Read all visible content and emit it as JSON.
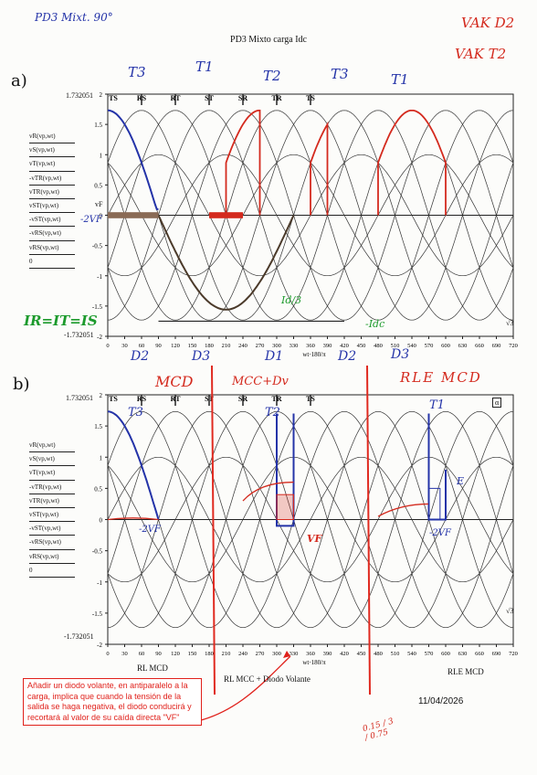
{
  "header": {
    "title": "PD3 Mixto carga Idc",
    "hw_topleft": "PD3 Mixt. 90°",
    "hw_topright_1": "VAK D2",
    "hw_topright_2": "VAK T2"
  },
  "panel_a": {
    "label": "a)",
    "phase_labels": [
      "TS",
      "RS",
      "RT",
      "ST",
      "SR",
      "TR",
      "TS"
    ],
    "thyristor_labels": [
      "T3",
      "T1",
      "T2",
      "T3",
      "T1"
    ],
    "diode_labels": [
      "D2",
      "D3",
      "D1",
      "D2",
      "D3"
    ],
    "ytop": "1.732051",
    "ybot": "-1.732051",
    "yticks": [
      "2",
      "1.5",
      "1",
      "0.5",
      "0",
      "-0.5",
      "-1",
      "-1.5",
      "-2"
    ],
    "xticks": [
      "0",
      "30",
      "60",
      "90",
      "120",
      "150",
      "180",
      "210",
      "240",
      "270",
      "300",
      "330",
      "360",
      "390",
      "420",
      "450",
      "480",
      "510",
      "540",
      "570",
      "600",
      "630",
      "660",
      "690",
      "720"
    ],
    "xlabel": "wt·180/π",
    "hw_vf": "-2VF",
    "hw_ir": "IR=IT=IS",
    "hw_idc": "-Idc",
    "hw_idc3": "Id/3",
    "sqrt3": "√3",
    "vf_axis": "vF"
  },
  "panel_b": {
    "label": "b)",
    "phase_labels": [
      "TS",
      "RS",
      "RT",
      "ST",
      "SR",
      "TR",
      "TS"
    ],
    "thyristor_labels": [
      "T3",
      "T2",
      "T1"
    ],
    "ytop": "1.732051",
    "ybot": "-1.732051",
    "yticks": [
      "2",
      "1.5",
      "1",
      "0.5",
      "0",
      "-0.5",
      "-1",
      "-1.5",
      "-2"
    ],
    "xticks": [
      "0",
      "30",
      "60",
      "90",
      "120",
      "150",
      "180",
      "210",
      "240",
      "270",
      "300",
      "330",
      "360",
      "390",
      "420",
      "450",
      "480",
      "510",
      "540",
      "570",
      "600",
      "630",
      "660",
      "690",
      "720"
    ],
    "xlabel": "wt·180/π",
    "hw_mcd": "MCD",
    "hw_mccdv": "MCC+Dv",
    "hw_rle": "RLE MCD",
    "hw_vf": "-2VF",
    "hw_vf2": "VF",
    "hw_vf3": "-2VF",
    "hw_e": "E",
    "sqrt3": "√3",
    "angle_box": "α"
  },
  "legend": [
    "vR(vp,wt)",
    "vS(vp,wt)",
    "vT(vp,wt)",
    "-vTR(vp,wt)",
    "vTR(vp,wt)",
    "vST(vp,wt)",
    "-vST(vp,wt)",
    "-vRS(vp,wt)",
    "vRS(vp,wt)",
    "0"
  ],
  "bottom": {
    "case1": "RL MCD",
    "case2": "RL MCC + Diodo Volante",
    "case3": "RLE MCD",
    "date": "11/04/2026",
    "calc": "0.15 / 3 / 0.75"
  },
  "note": "Añadir un diodo volante, en antiparalelo a la carga, implica que cuando la tensión de la salida se haga negativa, el diodo conducirá y recortará al valor de su caída directa \"VF\""
}
